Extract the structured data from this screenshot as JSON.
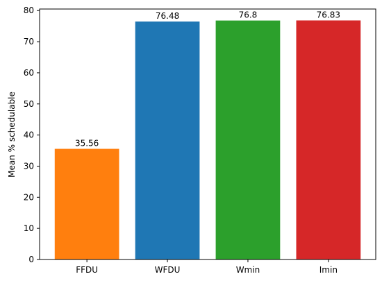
{
  "chart_data": {
    "type": "bar",
    "title": "",
    "xlabel": "",
    "ylabel": "Mean % schedulable",
    "categories": [
      "FFDU",
      "WFDU",
      "Wmin",
      "Imin"
    ],
    "values": [
      35.56,
      76.48,
      76.8,
      76.83
    ],
    "data_labels": [
      "35.56",
      "76.48",
      "76.8",
      "76.83"
    ],
    "colors": [
      "#ff7f0e",
      "#1f77b4",
      "#2ca02c",
      "#d62728"
    ],
    "ylim": [
      0,
      80.5
    ],
    "yticks": [
      0,
      10,
      20,
      30,
      40,
      50,
      60,
      70,
      80
    ],
    "grid": false,
    "legend": "none"
  }
}
